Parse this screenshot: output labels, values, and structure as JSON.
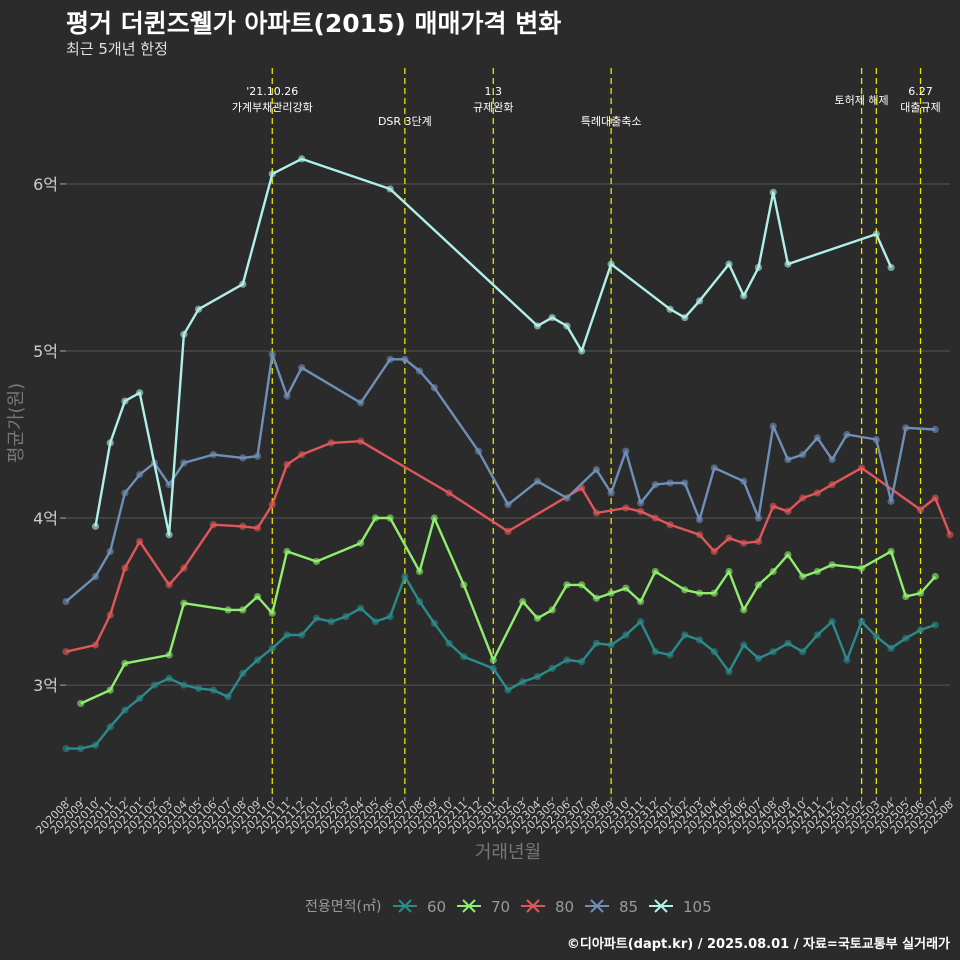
{
  "title": "평거 더퀸즈웰가 아파트(2015) 매매가격 변화",
  "subtitle": "최근 5개년 한정",
  "caption": "©디아파트(dapt.kr) / 2025.08.01 / 자료=국토교통부 실거래가",
  "colors": {
    "background": "#2b2b2b",
    "grid": "#555555",
    "event_line": "#e6e600",
    "60": "#2b8b8b",
    "70": "#90ee6e",
    "80": "#e15759",
    "85": "#6f8fb8",
    "105": "#b0f0e8"
  },
  "chart_data": {
    "type": "line",
    "xlabel": "거래년월",
    "ylabel": "평균가(원)",
    "y_tick_labels": [
      "3억",
      "4억",
      "5억",
      "6억"
    ],
    "y_ticks": [
      3.0,
      4.0,
      5.0,
      6.0
    ],
    "ylim": [
      2.33,
      6.73
    ],
    "legend_title": "전용면적(㎡)",
    "legend_position": "bottom",
    "x_months": [
      "202008",
      "202009",
      "202010",
      "202011",
      "202012",
      "202101",
      "202102",
      "202103",
      "202104",
      "202105",
      "202106",
      "202107",
      "202108",
      "202109",
      "202110",
      "202111",
      "202112",
      "202201",
      "202202",
      "202203",
      "202204",
      "202205",
      "202206",
      "202207",
      "202208",
      "202209",
      "202210",
      "202211",
      "202212",
      "202301",
      "202302",
      "202303",
      "202304",
      "202305",
      "202306",
      "202307",
      "202308",
      "202309",
      "202310",
      "202311",
      "202312",
      "202401",
      "202402",
      "202403",
      "202404",
      "202405",
      "202406",
      "202407",
      "202408",
      "202409",
      "202410",
      "202411",
      "202412",
      "202501",
      "202502",
      "202503",
      "202504",
      "202505",
      "202506",
      "202507",
      "202508"
    ],
    "events": [
      {
        "month": "202110",
        "label": "'21.10.26\n가계부채관리강화"
      },
      {
        "month": "202207",
        "label": "DSR 3단계"
      },
      {
        "month": "202301",
        "label": "1.3\n규제완화"
      },
      {
        "month": "202309",
        "label": "특례대출축소"
      },
      {
        "month": "202502",
        "label": "토허제 해제"
      },
      {
        "month": "202503",
        "label": ""
      },
      {
        "month": "202506",
        "label": "6.27\n대출규제"
      }
    ],
    "series": [
      {
        "name": "60",
        "points": [
          [
            "202008",
            2.62
          ],
          [
            "202009",
            2.62
          ],
          [
            "202010",
            2.64
          ],
          [
            "202011",
            2.75
          ],
          [
            "202012",
            2.85
          ],
          [
            "202101",
            2.92
          ],
          [
            "202102",
            3.0
          ],
          [
            "202103",
            3.04
          ],
          [
            "202104",
            3.0
          ],
          [
            "202105",
            2.98
          ],
          [
            "202106",
            2.97
          ],
          [
            "202107",
            2.93
          ],
          [
            "202108",
            3.07
          ],
          [
            "202109",
            3.15
          ],
          [
            "202110",
            3.22
          ],
          [
            "202111",
            3.3
          ],
          [
            "202112",
            3.3
          ],
          [
            "202201",
            3.4
          ],
          [
            "202202",
            3.38
          ],
          [
            "202203",
            3.41
          ],
          [
            "202204",
            3.46
          ],
          [
            "202205",
            3.38
          ],
          [
            "202206",
            3.41
          ],
          [
            "202207",
            3.65
          ],
          [
            "202208",
            3.5
          ],
          [
            "202209",
            3.37
          ],
          [
            "202210",
            3.25
          ],
          [
            "202211",
            3.17
          ],
          [
            "202301",
            3.1
          ],
          [
            "202302",
            2.97
          ],
          [
            "202303",
            3.02
          ],
          [
            "202304",
            3.05
          ],
          [
            "202305",
            3.1
          ],
          [
            "202306",
            3.15
          ],
          [
            "202307",
            3.14
          ],
          [
            "202308",
            3.25
          ],
          [
            "202309",
            3.24
          ],
          [
            "202310",
            3.3
          ],
          [
            "202311",
            3.38
          ],
          [
            "202312",
            3.2
          ],
          [
            "202401",
            3.18
          ],
          [
            "202402",
            3.3
          ],
          [
            "202403",
            3.27
          ],
          [
            "202404",
            3.2
          ],
          [
            "202405",
            3.08
          ],
          [
            "202406",
            3.24
          ],
          [
            "202407",
            3.16
          ],
          [
            "202408",
            3.2
          ],
          [
            "202409",
            3.25
          ],
          [
            "202410",
            3.2
          ],
          [
            "202411",
            3.3
          ],
          [
            "202412",
            3.38
          ],
          [
            "202501",
            3.15
          ],
          [
            "202502",
            3.38
          ],
          [
            "202503",
            3.29
          ],
          [
            "202504",
            3.22
          ],
          [
            "202505",
            3.28
          ],
          [
            "202506",
            3.33
          ],
          [
            "202507",
            3.36
          ]
        ]
      },
      {
        "name": "70",
        "points": [
          [
            "202009",
            2.89
          ],
          [
            "202011",
            2.97
          ],
          [
            "202012",
            3.13
          ],
          [
            "202103",
            3.18
          ],
          [
            "202104",
            3.49
          ],
          [
            "202107",
            3.45
          ],
          [
            "202108",
            3.45
          ],
          [
            "202109",
            3.53
          ],
          [
            "202110",
            3.43
          ],
          [
            "202111",
            3.8
          ],
          [
            "202201",
            3.74
          ],
          [
            "202204",
            3.85
          ],
          [
            "202205",
            4.0
          ],
          [
            "202206",
            4.0
          ],
          [
            "202208",
            3.68
          ],
          [
            "202209",
            4.0
          ],
          [
            "202211",
            3.6
          ],
          [
            "202301",
            3.15
          ],
          [
            "202303",
            3.5
          ],
          [
            "202304",
            3.4
          ],
          [
            "202305",
            3.45
          ],
          [
            "202306",
            3.6
          ],
          [
            "202307",
            3.6
          ],
          [
            "202308",
            3.52
          ],
          [
            "202309",
            3.55
          ],
          [
            "202310",
            3.58
          ],
          [
            "202311",
            3.5
          ],
          [
            "202312",
            3.68
          ],
          [
            "202402",
            3.57
          ],
          [
            "202403",
            3.55
          ],
          [
            "202404",
            3.55
          ],
          [
            "202405",
            3.68
          ],
          [
            "202406",
            3.45
          ],
          [
            "202407",
            3.6
          ],
          [
            "202408",
            3.68
          ],
          [
            "202409",
            3.78
          ],
          [
            "202410",
            3.65
          ],
          [
            "202411",
            3.68
          ],
          [
            "202412",
            3.72
          ],
          [
            "202502",
            3.7
          ],
          [
            "202504",
            3.8
          ],
          [
            "202505",
            3.53
          ],
          [
            "202506",
            3.55
          ],
          [
            "202507",
            3.65
          ]
        ]
      },
      {
        "name": "80",
        "points": [
          [
            "202008",
            3.2
          ],
          [
            "202010",
            3.24
          ],
          [
            "202011",
            3.42
          ],
          [
            "202012",
            3.7
          ],
          [
            "202101",
            3.86
          ],
          [
            "202103",
            3.6
          ],
          [
            "202104",
            3.7
          ],
          [
            "202106",
            3.96
          ],
          [
            "202108",
            3.95
          ],
          [
            "202109",
            3.94
          ],
          [
            "202110",
            4.08
          ],
          [
            "202111",
            4.32
          ],
          [
            "202112",
            4.38
          ],
          [
            "202202",
            4.45
          ],
          [
            "202204",
            4.46
          ],
          [
            "202210",
            4.15
          ],
          [
            "202302",
            3.92
          ],
          [
            "202307",
            4.18
          ],
          [
            "202308",
            4.03
          ],
          [
            "202310",
            4.06
          ],
          [
            "202311",
            4.04
          ],
          [
            "202312",
            4.0
          ],
          [
            "202401",
            3.96
          ],
          [
            "202403",
            3.9
          ],
          [
            "202404",
            3.8
          ],
          [
            "202405",
            3.88
          ],
          [
            "202406",
            3.85
          ],
          [
            "202407",
            3.86
          ],
          [
            "202408",
            4.07
          ],
          [
            "202409",
            4.04
          ],
          [
            "202410",
            4.12
          ],
          [
            "202411",
            4.15
          ],
          [
            "202412",
            4.2
          ],
          [
            "202502",
            4.3
          ],
          [
            "202506",
            4.05
          ],
          [
            "202507",
            4.12
          ],
          [
            "202508",
            3.9
          ]
        ]
      },
      {
        "name": "85",
        "points": [
          [
            "202008",
            3.5
          ],
          [
            "202010",
            3.65
          ],
          [
            "202011",
            3.8
          ],
          [
            "202012",
            4.15
          ],
          [
            "202101",
            4.26
          ],
          [
            "202102",
            4.33
          ],
          [
            "202103",
            4.2
          ],
          [
            "202104",
            4.33
          ],
          [
            "202106",
            4.38
          ],
          [
            "202108",
            4.36
          ],
          [
            "202109",
            4.37
          ],
          [
            "202110",
            4.98
          ],
          [
            "202111",
            4.73
          ],
          [
            "202112",
            4.9
          ],
          [
            "202204",
            4.69
          ],
          [
            "202206",
            4.95
          ],
          [
            "202207",
            4.95
          ],
          [
            "202208",
            4.88
          ],
          [
            "202209",
            4.78
          ],
          [
            "202212",
            4.4
          ],
          [
            "202302",
            4.08
          ],
          [
            "202304",
            4.22
          ],
          [
            "202306",
            4.12
          ],
          [
            "202308",
            4.29
          ],
          [
            "202309",
            4.15
          ],
          [
            "202310",
            4.4
          ],
          [
            "202311",
            4.09
          ],
          [
            "202312",
            4.2
          ],
          [
            "202401",
            4.21
          ],
          [
            "202402",
            4.21
          ],
          [
            "202403",
            3.99
          ],
          [
            "202404",
            4.3
          ],
          [
            "202406",
            4.22
          ],
          [
            "202407",
            4.0
          ],
          [
            "202408",
            4.55
          ],
          [
            "202409",
            4.35
          ],
          [
            "202410",
            4.38
          ],
          [
            "202411",
            4.48
          ],
          [
            "202412",
            4.35
          ],
          [
            "202501",
            4.5
          ],
          [
            "202503",
            4.47
          ],
          [
            "202504",
            4.1
          ],
          [
            "202505",
            4.54
          ],
          [
            "202507",
            4.53
          ]
        ]
      },
      {
        "name": "105",
        "points": [
          [
            "202010",
            3.95
          ],
          [
            "202011",
            4.45
          ],
          [
            "202012",
            4.7
          ],
          [
            "202101",
            4.75
          ],
          [
            "202103",
            3.9
          ],
          [
            "202104",
            5.1
          ],
          [
            "202105",
            5.25
          ],
          [
            "202108",
            5.4
          ],
          [
            "202110",
            6.06
          ],
          [
            "202112",
            6.15
          ],
          [
            "202206",
            5.97
          ],
          [
            "202304",
            5.15
          ],
          [
            "202305",
            5.2
          ],
          [
            "202306",
            5.15
          ],
          [
            "202307",
            5.0
          ],
          [
            "202309",
            5.52
          ],
          [
            "202401",
            5.25
          ],
          [
            "202402",
            5.2
          ],
          [
            "202403",
            5.3
          ],
          [
            "202405",
            5.52
          ],
          [
            "202406",
            5.33
          ],
          [
            "202407",
            5.5
          ],
          [
            "202408",
            5.95
          ],
          [
            "202409",
            5.52
          ],
          [
            "202503",
            5.7
          ],
          [
            "202504",
            5.5
          ]
        ]
      }
    ]
  }
}
